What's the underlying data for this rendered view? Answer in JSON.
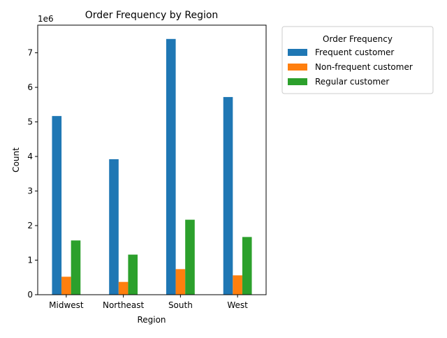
{
  "chart_data": {
    "type": "bar",
    "title": "Order Frequency by Region",
    "xlabel": "Region",
    "ylabel": "Count",
    "y_offset_label": "1e6",
    "y_scale": 1000000,
    "categories": [
      "Midwest",
      "Northeast",
      "South",
      "West"
    ],
    "series": [
      {
        "name": "Frequent customer",
        "color": "#1f77b4",
        "values": [
          5170000,
          3920000,
          7400000,
          5720000
        ]
      },
      {
        "name": "Non-frequent customer",
        "color": "#ff7f0e",
        "values": [
          520000,
          370000,
          740000,
          560000
        ]
      },
      {
        "name": "Regular customer",
        "color": "#2ca02c",
        "values": [
          1570000,
          1160000,
          2170000,
          1670000
        ]
      }
    ],
    "ylim": [
      0,
      7800000
    ],
    "yticks": [
      0,
      1000000,
      2000000,
      3000000,
      4000000,
      5000000,
      6000000,
      7000000
    ],
    "ytick_labels": [
      "0",
      "1",
      "2",
      "3",
      "4",
      "5",
      "6",
      "7"
    ],
    "grid": false,
    "legend": {
      "title": "Order Frequency",
      "placement": "outside-right-top"
    }
  }
}
